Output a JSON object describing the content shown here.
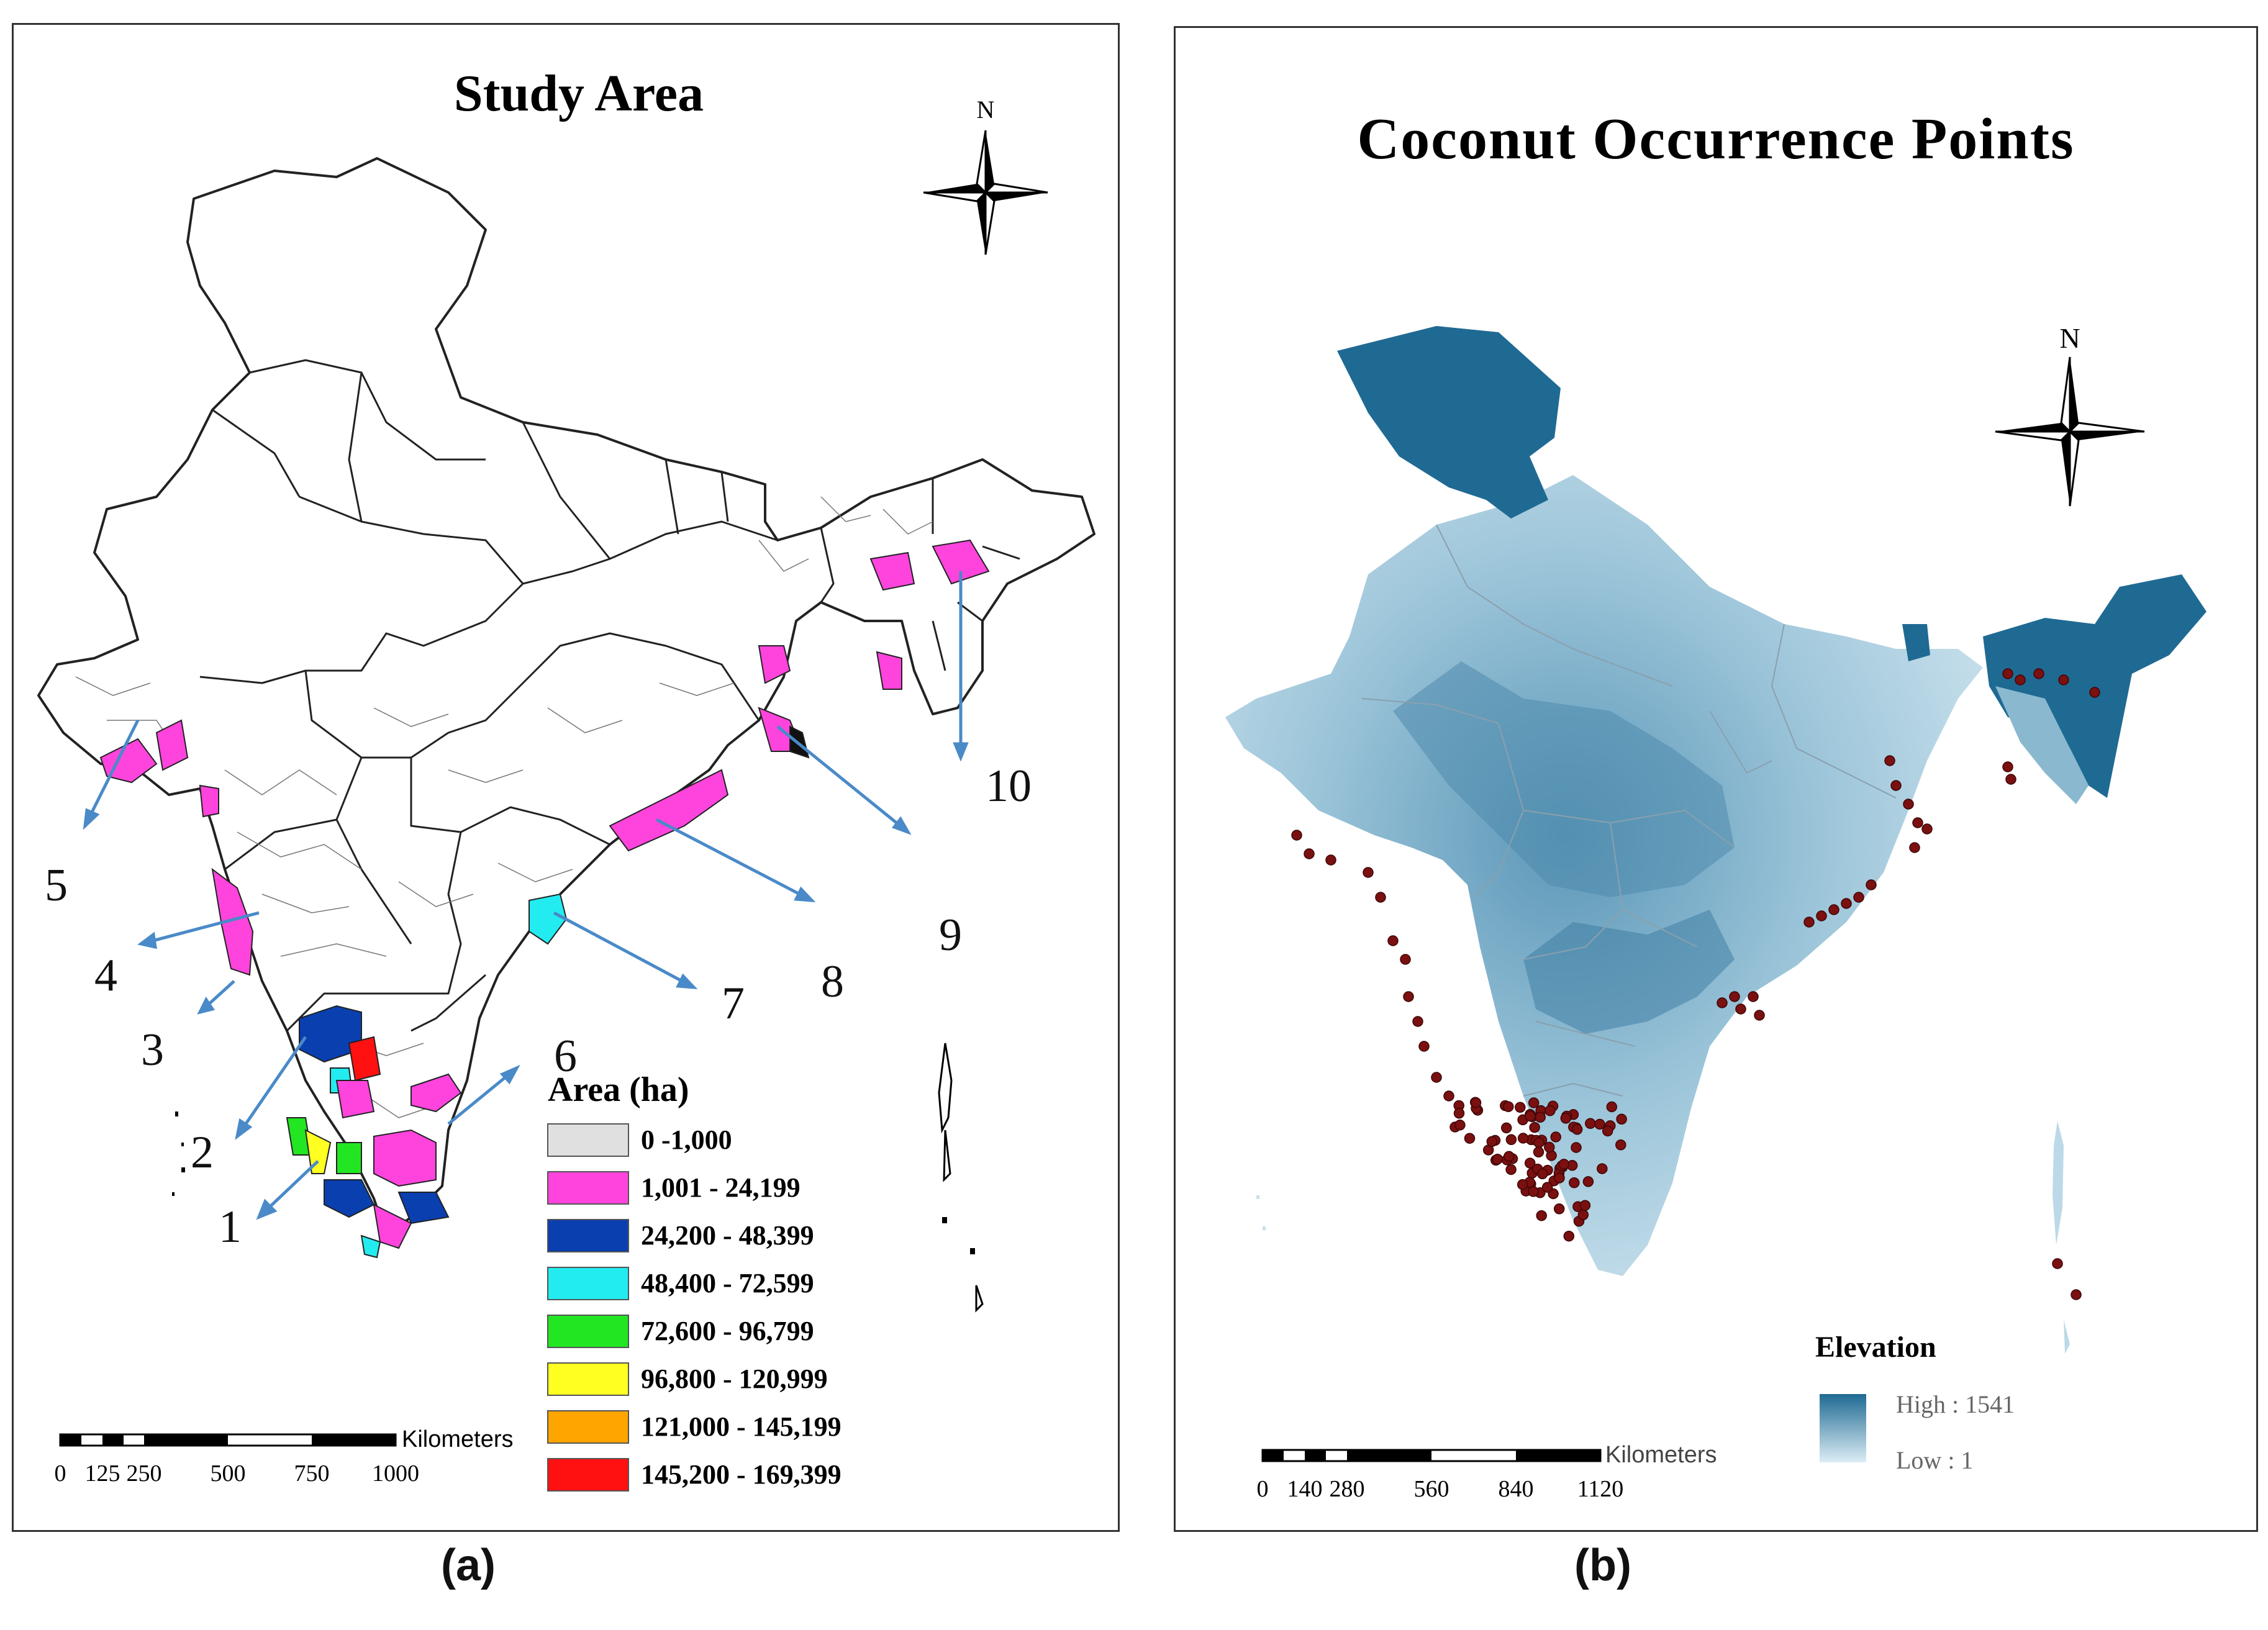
{
  "figure": {
    "panel_a": {
      "label": "(a)",
      "title": "Study Area",
      "north": "N",
      "callouts": [
        "1",
        "2",
        "3",
        "4",
        "5",
        "6",
        "7",
        "8",
        "9",
        "10"
      ],
      "legend": {
        "title": "Area (ha)",
        "classes": [
          {
            "label": "0 -1,000",
            "color": "#e0e0e0"
          },
          {
            "label": "1,001 - 24,199",
            "color": "#ff44dd"
          },
          {
            "label": "24,200 - 48,399",
            "color": "#0a3fb0"
          },
          {
            "label": "48,400 - 72,599",
            "color": "#22ecf0"
          },
          {
            "label": "72,600 - 96,799",
            "color": "#22e622"
          },
          {
            "label": "96,800 - 120,999",
            "color": "#ffff22"
          },
          {
            "label": "121,000 - 145,199",
            "color": "#ffa500"
          },
          {
            "label": "145,200 - 169,399",
            "color": "#ff1111"
          }
        ]
      },
      "scale": {
        "unit": "Kilometers",
        "ticks": [
          "0",
          "125",
          "250",
          "500",
          "750",
          "1000"
        ]
      }
    },
    "panel_b": {
      "label": "(b)",
      "title": "Coconut Occurrence Points",
      "north": "N",
      "legend": {
        "title": "Elevation",
        "high": "High : 1541",
        "low": "Low : 1",
        "high_color": "#1f6a93",
        "low_color": "#dcedf5"
      },
      "scale": {
        "unit": "Kilometers",
        "ticks": [
          "0",
          "140",
          "280",
          "560",
          "840",
          "1120"
        ]
      },
      "point_color": "#7a1010"
    }
  }
}
